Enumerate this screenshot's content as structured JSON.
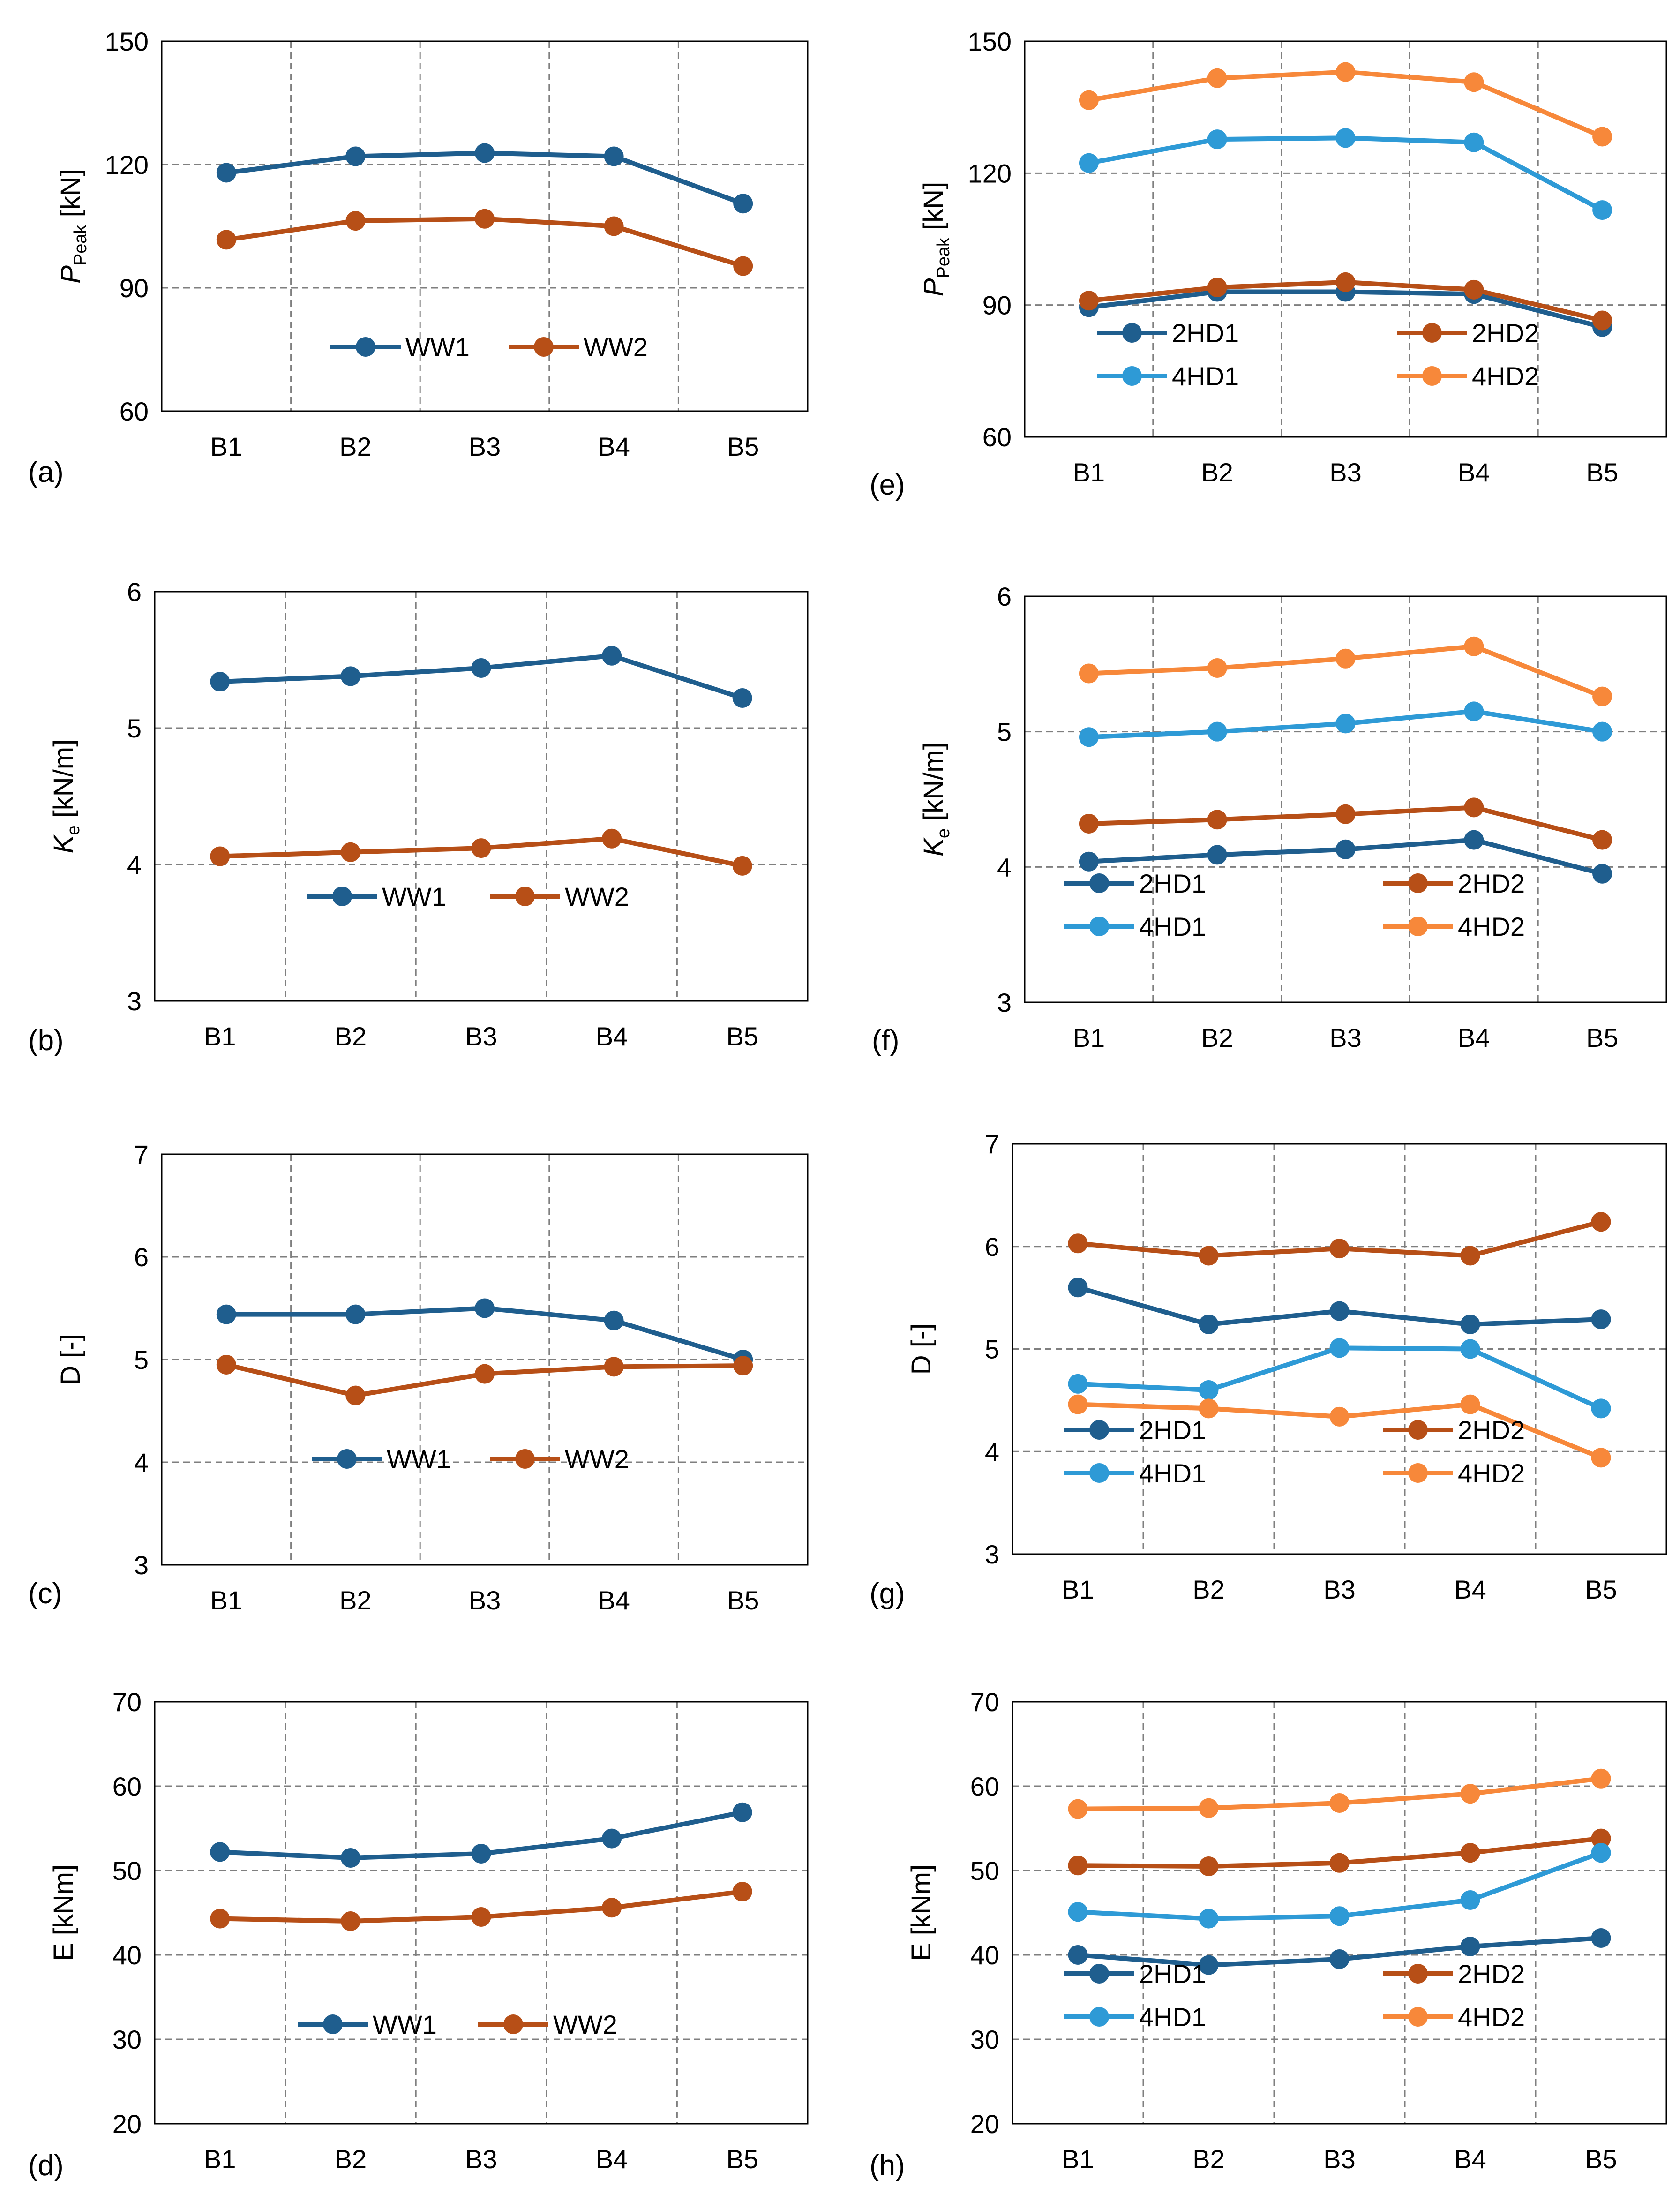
{
  "figure": {
    "title": ""
  },
  "chart_data": [
    {
      "id": "a",
      "type": "line",
      "panel_label": "(a)",
      "categories": [
        "B1",
        "B2",
        "B3",
        "B4",
        "B5"
      ],
      "ylabel_main": "P",
      "ylabel_sub": "Peak",
      "ylabel_unit": " [kN]",
      "ylim": [
        60,
        150
      ],
      "yticks": [
        60,
        90,
        120,
        150
      ],
      "series": [
        {
          "name": "WW1",
          "color": "#1f5e8e",
          "values": [
            118,
            122,
            122.8,
            122,
            110.5
          ]
        },
        {
          "name": "WW2",
          "color": "#b74f17",
          "values": [
            101.7,
            106.3,
            106.8,
            105,
            95.3
          ]
        }
      ],
      "legend": {
        "columns": 2
      }
    },
    {
      "id": "b",
      "type": "line",
      "panel_label": "(b)",
      "categories": [
        "B1",
        "B2",
        "B3",
        "B4",
        "B5"
      ],
      "ylabel_main": "K",
      "ylabel_sub": "e",
      "ylabel_unit": " [kN/m]",
      "ylim": [
        3,
        6
      ],
      "yticks": [
        3,
        4,
        5,
        6
      ],
      "series": [
        {
          "name": "WW1",
          "color": "#1f5e8e",
          "values": [
            5.34,
            5.38,
            5.44,
            5.53,
            5.22
          ]
        },
        {
          "name": "WW2",
          "color": "#b74f17",
          "values": [
            4.06,
            4.09,
            4.12,
            4.19,
            3.99
          ]
        }
      ],
      "legend": {
        "columns": 2
      }
    },
    {
      "id": "c",
      "type": "line",
      "panel_label": "(c)",
      "categories": [
        "B1",
        "B2",
        "B3",
        "B4",
        "B5"
      ],
      "ylabel_main": "D [-]",
      "ylabel_sub": "",
      "ylabel_unit": "",
      "ylim": [
        3,
        7
      ],
      "yticks": [
        3,
        4,
        5,
        6,
        7
      ],
      "series": [
        {
          "name": "WW1",
          "color": "#1f5e8e",
          "values": [
            5.44,
            5.44,
            5.5,
            5.38,
            5.0
          ]
        },
        {
          "name": "WW2",
          "color": "#b74f17",
          "values": [
            4.95,
            4.65,
            4.86,
            4.93,
            4.94
          ]
        }
      ],
      "legend": {
        "columns": 2
      }
    },
    {
      "id": "d",
      "type": "line",
      "panel_label": "(d)",
      "categories": [
        "B1",
        "B2",
        "B3",
        "B4",
        "B5"
      ],
      "ylabel_main": "E [kNm]",
      "ylabel_sub": "",
      "ylabel_unit": "",
      "ylim": [
        20,
        70
      ],
      "yticks": [
        20,
        30,
        40,
        50,
        60,
        70
      ],
      "series": [
        {
          "name": "WW1",
          "color": "#1f5e8e",
          "values": [
            52.2,
            51.5,
            52.0,
            53.8,
            56.9
          ]
        },
        {
          "name": "WW2",
          "color": "#b74f17",
          "values": [
            44.3,
            44.0,
            44.5,
            45.6,
            47.5
          ]
        }
      ],
      "legend": {
        "columns": 2
      }
    },
    {
      "id": "e",
      "type": "line",
      "panel_label": "(e)",
      "categories": [
        "B1",
        "B2",
        "B3",
        "B4",
        "B5"
      ],
      "ylabel_main": "P",
      "ylabel_sub": "Peak",
      "ylabel_unit": " [kN]",
      "ylim": [
        60,
        150
      ],
      "yticks": [
        60,
        90,
        120,
        150
      ],
      "series": [
        {
          "name": "2HD1",
          "color": "#1f5e8e",
          "values": [
            89.5,
            93.0,
            93.0,
            92.5,
            85.0
          ]
        },
        {
          "name": "2HD2",
          "color": "#b74f17",
          "values": [
            91.0,
            94.0,
            95.2,
            93.5,
            86.5
          ]
        },
        {
          "name": "4HD1",
          "color": "#2e9ad6",
          "values": [
            122.3,
            127.7,
            128.0,
            127.0,
            111.6
          ]
        },
        {
          "name": "4HD2",
          "color": "#f7883a",
          "values": [
            136.6,
            141.6,
            143.0,
            140.7,
            128.3
          ]
        }
      ],
      "legend": {
        "columns": 2
      }
    },
    {
      "id": "f",
      "type": "line",
      "panel_label": "(f)",
      "categories": [
        "B1",
        "B2",
        "B3",
        "B4",
        "B5"
      ],
      "ylabel_main": "K",
      "ylabel_sub": "e",
      "ylabel_unit": " [kN/m]",
      "ylim": [
        3,
        6
      ],
      "yticks": [
        3,
        4,
        5,
        6
      ],
      "series": [
        {
          "name": "2HD1",
          "color": "#1f5e8e",
          "values": [
            4.04,
            4.09,
            4.13,
            4.2,
            3.95
          ]
        },
        {
          "name": "2HD2",
          "color": "#b74f17",
          "values": [
            4.32,
            4.35,
            4.39,
            4.44,
            4.2
          ]
        },
        {
          "name": "4HD1",
          "color": "#2e9ad6",
          "values": [
            4.96,
            5.0,
            5.06,
            5.15,
            5.0
          ]
        },
        {
          "name": "4HD2",
          "color": "#f7883a",
          "values": [
            5.43,
            5.47,
            5.54,
            5.63,
            5.26
          ]
        }
      ],
      "legend": {
        "columns": 2
      }
    },
    {
      "id": "g",
      "type": "line",
      "panel_label": "(g)",
      "categories": [
        "B1",
        "B2",
        "B3",
        "B4",
        "B5"
      ],
      "ylabel_main": "D [-]",
      "ylabel_sub": "",
      "ylabel_unit": "",
      "ylim": [
        3,
        7
      ],
      "yticks": [
        3,
        4,
        5,
        6,
        7
      ],
      "series": [
        {
          "name": "2HD1",
          "color": "#1f5e8e",
          "values": [
            5.6,
            5.24,
            5.37,
            5.24,
            5.29
          ]
        },
        {
          "name": "2HD2",
          "color": "#b74f17",
          "values": [
            6.03,
            5.91,
            5.98,
            5.91,
            6.24
          ]
        },
        {
          "name": "4HD1",
          "color": "#2e9ad6",
          "values": [
            4.66,
            4.6,
            5.01,
            5.0,
            4.42
          ]
        },
        {
          "name": "4HD2",
          "color": "#f7883a",
          "values": [
            4.46,
            4.42,
            4.34,
            4.46,
            3.94
          ]
        }
      ],
      "legend": {
        "columns": 2
      }
    },
    {
      "id": "h",
      "type": "line",
      "panel_label": "(h)",
      "categories": [
        "B1",
        "B2",
        "B3",
        "B4",
        "B5"
      ],
      "ylabel_main": "E [kNm]",
      "ylabel_sub": "",
      "ylabel_unit": "",
      "ylim": [
        20,
        70
      ],
      "yticks": [
        20,
        30,
        40,
        50,
        60,
        70
      ],
      "series": [
        {
          "name": "2HD1",
          "color": "#1f5e8e",
          "values": [
            40.0,
            38.8,
            39.5,
            41.0,
            42.0
          ]
        },
        {
          "name": "2HD2",
          "color": "#b74f17",
          "values": [
            50.6,
            50.5,
            50.9,
            52.1,
            53.8
          ]
        },
        {
          "name": "4HD1",
          "color": "#2e9ad6",
          "values": [
            45.1,
            44.3,
            44.6,
            46.5,
            52.1
          ]
        },
        {
          "name": "4HD2",
          "color": "#f7883a",
          "values": [
            57.3,
            57.4,
            58.0,
            59.1,
            60.9
          ]
        }
      ],
      "legend": {
        "columns": 2
      }
    }
  ]
}
